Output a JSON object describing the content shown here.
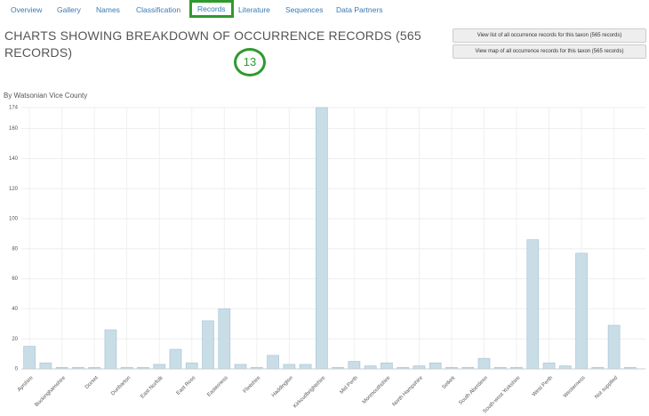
{
  "nav": {
    "tabs": [
      "Overview",
      "Gallery",
      "Names",
      "Classification",
      "Records",
      "Literature",
      "Sequences",
      "Data Partners"
    ],
    "active": 4
  },
  "heading": {
    "title": "CHARTS SHOWING BREAKDOWN OF OCCURRENCE RECORDS (565 RECORDS)",
    "annotation": "13"
  },
  "buttons": [
    "View list of all occurrence records for this taxon (565 records)",
    "View map of all occurrence records for this taxon (565 records)"
  ],
  "chart_data": {
    "type": "bar",
    "title": "By Watsonian Vice County",
    "categories": [
      "Ayrshire",
      null,
      "Buckinghamshire",
      null,
      "Dorset",
      null,
      "Dunbarton",
      null,
      "East Norfolk",
      null,
      "East Ross",
      null,
      "Easterness",
      null,
      "Flintshire",
      null,
      "Haddington",
      null,
      "Kirkcudbrightshire",
      null,
      "Mid Perth",
      null,
      "Monmouthshire",
      null,
      "North Hampshire",
      null,
      "Selkirk",
      null,
      "South Aberdeen",
      null,
      "South-west Yorkshire",
      null,
      "West Perth",
      null,
      "Westerness",
      null,
      "Not supplied",
      null
    ],
    "values": [
      15,
      4,
      1,
      1,
      1,
      26,
      1,
      1,
      3,
      13,
      4,
      32,
      40,
      3,
      1,
      9,
      3,
      3,
      174,
      1,
      5,
      2,
      4,
      1,
      2,
      4,
      1,
      1,
      7,
      1,
      1,
      86,
      4,
      2,
      77,
      1,
      29,
      1
    ],
    "color": "#c9dde7",
    "ylim": [
      0,
      174
    ],
    "yticks": [
      0,
      20,
      40,
      60,
      80,
      100,
      120,
      140,
      160,
      174
    ],
    "grid": true
  }
}
